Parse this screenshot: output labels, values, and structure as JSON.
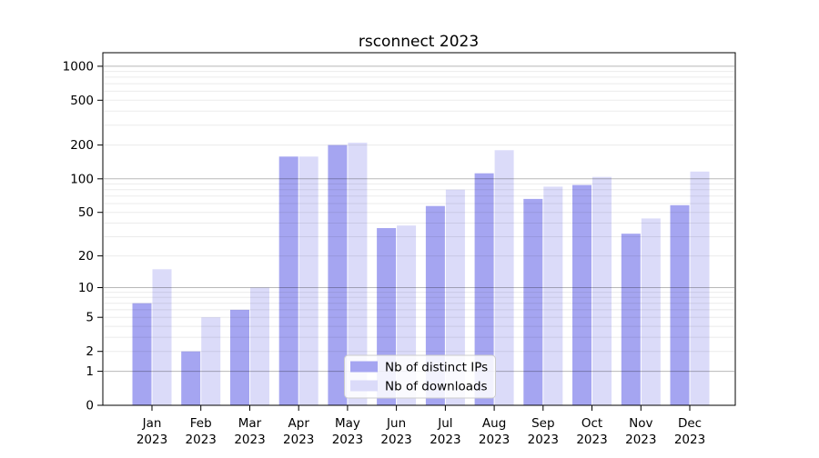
{
  "title": "rsconnect 2023",
  "chart_data": {
    "type": "bar",
    "title": "rsconnect 2023",
    "categories": [
      "Jan 2023",
      "Feb 2023",
      "Mar 2023",
      "Apr 2023",
      "May 2023",
      "Jun 2023",
      "Jul 2023",
      "Aug 2023",
      "Sep 2023",
      "Oct 2023",
      "Nov 2023",
      "Dec 2023"
    ],
    "series": [
      {
        "name": "Nb of distinct IPs",
        "color": "#a5a5f1",
        "values": [
          7,
          2,
          6,
          158,
          200,
          36,
          57,
          112,
          66,
          88,
          32,
          58
        ]
      },
      {
        "name": "Nb of downloads",
        "color": "#dbdbf9",
        "values": [
          15,
          5,
          10,
          158,
          210,
          38,
          80,
          180,
          85,
          104,
          44,
          116
        ]
      }
    ],
    "xlabel": "",
    "ylabel": "",
    "yscale": "log1p",
    "yticks": [
      0,
      1,
      2,
      5,
      10,
      20,
      50,
      100,
      200,
      500,
      1000
    ],
    "ylim": [
      0,
      1290
    ],
    "grid": true,
    "major_grid_values": [
      1,
      10,
      100,
      1000
    ],
    "minor_grid_values": [
      2,
      3,
      4,
      5,
      6,
      7,
      8,
      9,
      20,
      30,
      40,
      50,
      60,
      70,
      80,
      90,
      200,
      300,
      400,
      500,
      600,
      700,
      800,
      900
    ],
    "legend_position": "lower center",
    "colors": {
      "spine": "#000000",
      "major_grid": "rgba(0,0,0,0.28)",
      "minor_grid": "rgba(0,0,0,0.08)",
      "legend_border": "#cccccc",
      "legend_background": "rgba(255,255,255,0.85)"
    }
  }
}
